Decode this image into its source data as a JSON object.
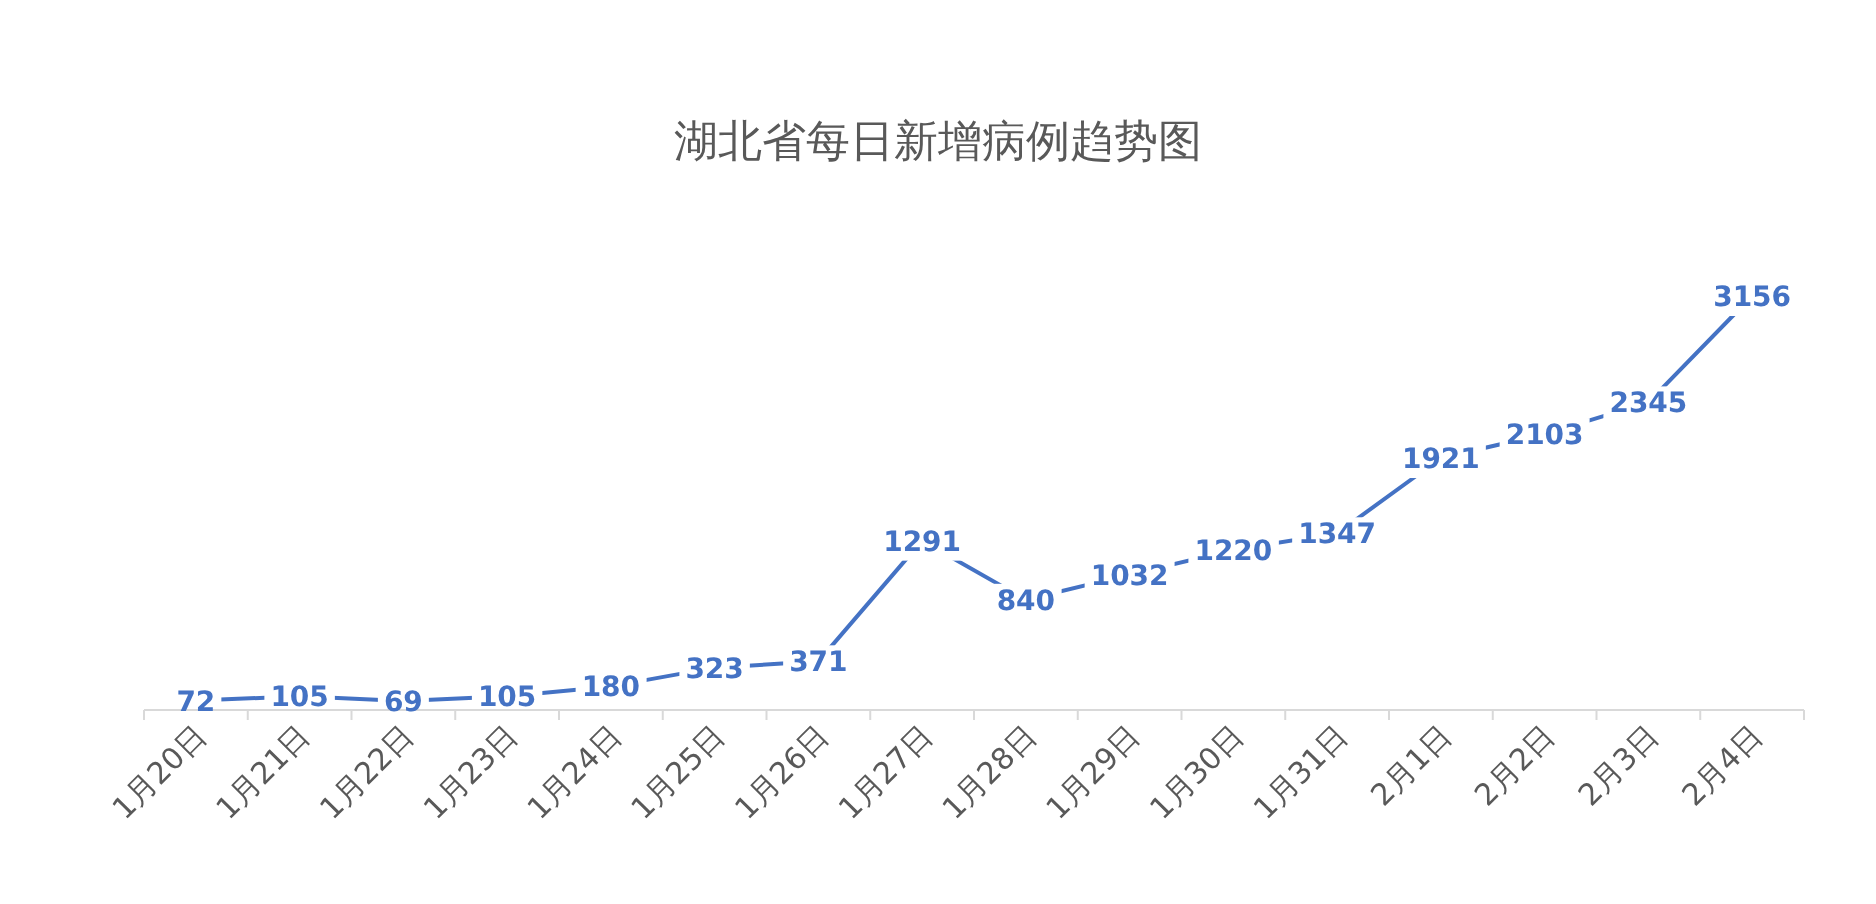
{
  "chart_data": {
    "type": "line",
    "title": "湖北省每日新增病例趋势图",
    "categories": [
      "1月20日",
      "1月21日",
      "1月22日",
      "1月23日",
      "1月24日",
      "1月25日",
      "1月26日",
      "1月27日",
      "1月28日",
      "1月29日",
      "1月30日",
      "1月31日",
      "2月1日",
      "2月2日",
      "2月3日",
      "2月4日"
    ],
    "series": [
      {
        "color": "#4472c4",
        "values": [
          72,
          105,
          69,
          105,
          180,
          323,
          371,
          1291,
          840,
          1032,
          1220,
          1347,
          1921,
          2103,
          2345,
          3156
        ]
      }
    ],
    "data_labels": true
  }
}
